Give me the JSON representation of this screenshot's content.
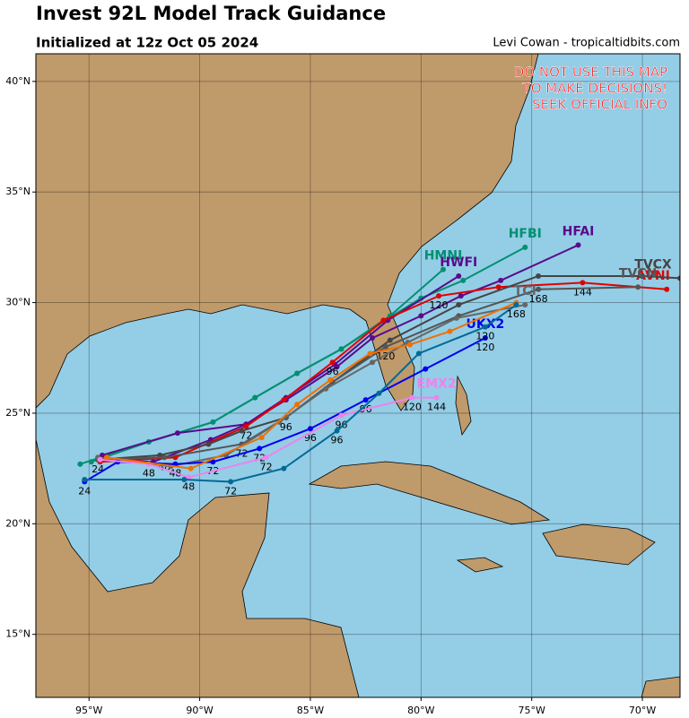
{
  "chart_data": {
    "type": "track",
    "title": "Invest 92L Model Track Guidance",
    "subtitle": "Initialized at 12z Oct 05 2024",
    "credit": "Levi Cowan - tropicaltidbits.com",
    "warning": [
      "DO NOT USE THIS MAP",
      "TO MAKE DECISIONS!",
      "SEEK OFFICIAL INFO"
    ],
    "xlim": [
      -97.4,
      -68.3
    ],
    "ylim": [
      12.15,
      41.25
    ],
    "xticks": [
      {
        "value": -95,
        "label": "95°W"
      },
      {
        "value": -90,
        "label": "90°W"
      },
      {
        "value": -85,
        "label": "85°W"
      },
      {
        "value": -80,
        "label": "80°W"
      },
      {
        "value": -75,
        "label": "75°W"
      },
      {
        "value": -70,
        "label": "70°W"
      }
    ],
    "yticks": [
      {
        "value": 15,
        "label": "15°N"
      },
      {
        "value": 20,
        "label": "20°N"
      },
      {
        "value": 25,
        "label": "25°N"
      },
      {
        "value": 30,
        "label": "30°N"
      },
      {
        "value": 35,
        "label": "35°N"
      },
      {
        "value": 40,
        "label": "40°N"
      }
    ],
    "grid": true,
    "series": [
      {
        "name": "HFAI",
        "color": "#5a0a8c",
        "x": [
          -94.5,
          -92.1,
          -89.5,
          -87.9,
          -86.1,
          -83.8,
          -82.2,
          -80.0,
          -78.2,
          -76.4,
          -72.9
        ],
        "y": [
          22.9,
          22.8,
          23.8,
          24.5,
          25.6,
          27.1,
          28.4,
          29.4,
          30.3,
          31.0,
          32.6
        ]
      },
      {
        "name": "HFBI",
        "color": "#009070",
        "x": [
          -94.9,
          -92.3,
          -89.4,
          -87.5,
          -85.6,
          -83.6,
          -81.3,
          -80.0,
          -78.1,
          -75.3
        ],
        "y": [
          22.8,
          23.7,
          24.6,
          25.7,
          26.8,
          27.9,
          29.4,
          30.2,
          31.0,
          32.5
        ]
      },
      {
        "name": "HMNI",
        "color": "#009070",
        "x": [
          -95.4,
          -92.3,
          -89.4,
          -87.5,
          -85.6,
          -83.6,
          -81.4,
          -79.0
        ],
        "y": [
          22.7,
          23.7,
          24.6,
          25.7,
          26.8,
          27.9,
          29.4,
          31.5
        ]
      },
      {
        "name": "HWFI",
        "color": "#5a0a8c",
        "x": [
          -94.4,
          -91.0,
          -87.9,
          -86.1,
          -83.9,
          -81.5,
          -78.3
        ],
        "y": [
          23.1,
          24.1,
          24.5,
          25.7,
          27.2,
          29.2,
          31.2
        ]
      },
      {
        "name": "AVNI",
        "color": "#e00000",
        "x": [
          -94.5,
          -91.1,
          -87.9,
          -86.2,
          -84.0,
          -81.7,
          -79.2,
          -76.5,
          -72.7,
          -68.9
        ],
        "y": [
          22.8,
          23.0,
          24.4,
          25.6,
          27.3,
          29.2,
          30.3,
          30.7,
          30.9,
          30.6
        ],
        "labels": [
          null,
          null,
          72,
          null,
          96,
          null,
          120,
          null,
          144,
          null
        ]
      },
      {
        "name": "TVCX",
        "color": "#444444",
        "x": [
          -94.6,
          -91.8,
          -89.6,
          -88.1,
          -86.1,
          -84.0,
          -81.4,
          -78.3,
          -74.7,
          -70.0,
          -68.3
        ],
        "y": [
          22.9,
          23.1,
          23.6,
          24.2,
          24.8,
          26.4,
          28.3,
          29.9,
          31.2,
          31.2,
          31.1
        ]
      },
      {
        "name": "TVCN",
        "color": "#555555",
        "x": [
          -94.6,
          -91.6,
          -88.1,
          -86.1,
          -84.0,
          -81.6,
          -78.3,
          -74.7,
          -70.2
        ],
        "y": [
          22.9,
          23.0,
          23.6,
          24.8,
          26.4,
          28.0,
          29.4,
          30.6,
          30.7
        ],
        "labels": [
          24,
          48,
          72,
          96,
          null,
          120,
          null,
          168,
          null
        ]
      },
      {
        "name": "TCI",
        "color": "#666666",
        "x": [
          -94.6,
          -91.3,
          -88.8,
          -86.4,
          -84.3,
          -82.2,
          -80.6,
          -78.4,
          -75.3
        ],
        "y": [
          23.0,
          22.6,
          23.1,
          24.6,
          26.1,
          27.3,
          28.2,
          29.3,
          29.9
        ]
      },
      {
        "name": "UKX2",
        "color": "#0000ee",
        "x": [
          -95.2,
          -93.7,
          -91.1,
          -89.4,
          -87.3,
          -85.0,
          -82.5,
          -79.8,
          -77.1
        ],
        "y": [
          21.9,
          22.8,
          22.7,
          22.8,
          23.4,
          24.3,
          25.6,
          27.0,
          28.4
        ],
        "labels": [
          24,
          null,
          48,
          72,
          72,
          96,
          96,
          null,
          120
        ]
      },
      {
        "name": "EMX2",
        "color": "#ee82ee",
        "x": [
          -94.5,
          -92.3,
          -90.5,
          -87.0,
          -83.6,
          -80.4,
          -79.3
        ],
        "y": [
          22.9,
          22.7,
          22.1,
          23.0,
          24.9,
          25.7,
          25.7
        ],
        "labels": [
          null,
          48,
          48,
          72,
          96,
          120,
          144
        ]
      },
      {
        "color": "#f07000",
        "x": [
          -94.2,
          -90.4,
          -87.2,
          -85.6,
          -84.1,
          -82.3,
          -80.5,
          -78.7,
          -75.7
        ],
        "y": [
          23.0,
          22.5,
          23.9,
          25.4,
          26.5,
          27.7,
          28.1,
          28.7,
          30.0
        ]
      },
      {
        "color": "#006a96",
        "x": [
          -95.2,
          -90.7,
          -88.6,
          -86.2,
          -83.8,
          -81.9,
          -80.1,
          -77.1,
          -75.7
        ],
        "y": [
          22.0,
          22.0,
          21.9,
          22.5,
          24.2,
          25.9,
          27.7,
          28.9,
          29.9
        ],
        "labels": [
          null,
          null,
          72,
          null,
          96,
          null,
          null,
          120,
          168
        ]
      }
    ]
  }
}
